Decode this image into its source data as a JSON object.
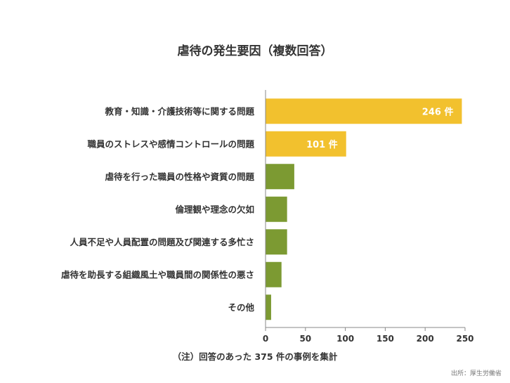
{
  "chart_data": {
    "type": "bar",
    "orientation": "horizontal",
    "title": "虐待の発生要因（複数回答）",
    "categories": [
      "教育・知識・介護技術等に関する問題",
      "職員のストレスや感情コントロールの問題",
      "虐待を行った職員の性格や資質の問題",
      "倫理観や理念の欠如",
      "人員不足や人員配置の問題及び関連する多忙さ",
      "虐待を助長する組織風土や職員間の関係性の悪さ",
      "その他"
    ],
    "values": [
      246,
      101,
      36,
      27,
      27,
      20,
      7
    ],
    "data_labels": [
      "246 件",
      "101 件",
      "",
      "",
      "",
      "",
      ""
    ],
    "xlim": [
      0,
      250
    ],
    "xticks": [
      "0",
      "50",
      "100",
      "150",
      "200",
      "250"
    ],
    "grid": false,
    "colors": {
      "highlight": "#f2c12e",
      "default": "#7c9a32",
      "axis": "#888888"
    },
    "bar_color_groups": [
      "highlight",
      "highlight",
      "default",
      "default",
      "default",
      "default",
      "default"
    ]
  },
  "note": "（注）回答のあった 375 件の事例を集計",
  "source": "出所：厚生労働省"
}
